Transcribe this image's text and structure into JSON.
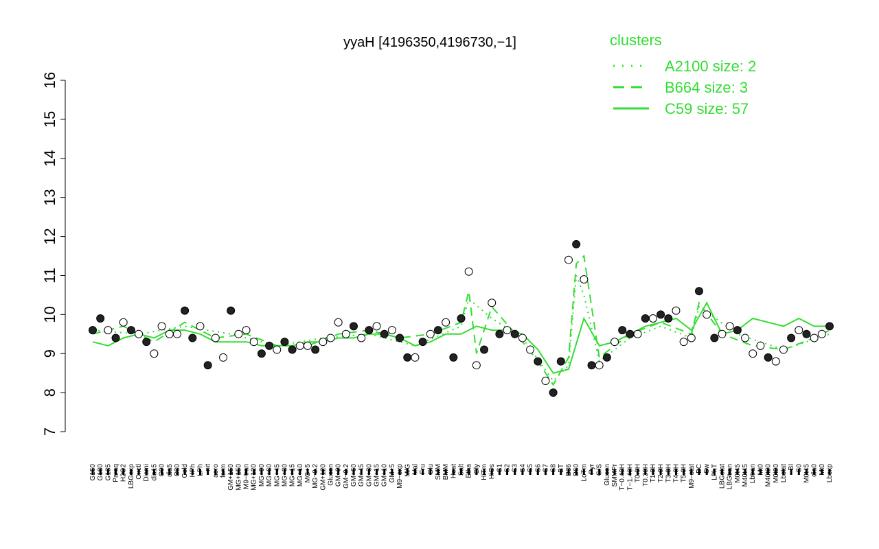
{
  "chart_data": {
    "type": "line",
    "title": "yyaH [4196350,4196730,−1]",
    "xlabel": "",
    "ylabel": "",
    "ylim": [
      7,
      16
    ],
    "yticks": [
      7,
      8,
      9,
      10,
      11,
      12,
      13,
      14,
      15,
      16
    ],
    "grid": false,
    "legend": {
      "title": "clusters",
      "placement": "top-right",
      "color": "#33dd33",
      "entries": [
        {
          "label": "A2100 size: 2",
          "style": "dotted"
        },
        {
          "label": "B664 size: 3",
          "style": "dashed"
        },
        {
          "label": "C59 size: 57",
          "style": "solid"
        }
      ]
    },
    "x_tick_labels": [
      "G150",
      "G180",
      "G135",
      "Paraq",
      "H2O2",
      "LBGexp",
      "Oxctl",
      "Diami",
      "dia15",
      "C90",
      "dia5",
      "C30",
      "Cold",
      "HPh",
      "LPh",
      "nit",
      "aero",
      "ferm",
      "GM+150",
      "MG+150",
      "M9−tran",
      "MG+120",
      "MG+90",
      "MG+60",
      "MG+45",
      "MG+30",
      "MG+15",
      "MG+10",
      "MG+5",
      "MG−0.2",
      "GM+120",
      "Glucon",
      "GM+90",
      "GM−0.2",
      "GM+60",
      "GM+45",
      "GM+30",
      "GM+15",
      "GM+10",
      "GM+5",
      "M9−exp",
      "M/G",
      "Mal",
      "Fru",
      "Glu",
      "SMM",
      "BMM",
      "Heat",
      "Salt",
      "Etha",
      "Gly",
      "HiTm",
      "HiOs",
      "S1",
      "S2",
      "S3",
      "S4",
      "S5",
      "S6",
      "S7",
      "S8",
      "BT",
      "B36",
      "B60",
      "LoTm",
      "Pyr",
      "G/S",
      "Glucon",
      "SMMPr",
      "T−0.40H",
      "T−1.40H",
      "T0.0H",
      "T0.30H",
      "T1.0H",
      "T2.0H",
      "T3.0H",
      "T4.0H",
      "T5.0H",
      "M9−stat",
      "BC",
      "Sw",
      "LPhT",
      "LBGstat",
      "LBGtran",
      "M0t45",
      "M40t45",
      "Lbtran",
      "Mt0",
      "M40t90",
      "M0t90",
      "Lbstat",
      "BI",
      "S0",
      "M0t45",
      "dia0",
      "Mt0",
      "Lbexp"
    ],
    "series": [
      {
        "name": "samples",
        "style": "points",
        "x": [
          0,
          1,
          2,
          3,
          4,
          5,
          6,
          7,
          8,
          9,
          10,
          11,
          12,
          13,
          14,
          15,
          16,
          17,
          18,
          19,
          20,
          21,
          22,
          23,
          24,
          25,
          26,
          27,
          28,
          29,
          30,
          31,
          32,
          33,
          34,
          35,
          36,
          37,
          38,
          39,
          40,
          41,
          42,
          43,
          44,
          45,
          46,
          47,
          48,
          49,
          50,
          51,
          52,
          53,
          54,
          55,
          56,
          57,
          58,
          59,
          60,
          61,
          62,
          63,
          64,
          65,
          66,
          67,
          68,
          69,
          70,
          71,
          72,
          73,
          74,
          75,
          76,
          77,
          78,
          79,
          80,
          81,
          82,
          83,
          84,
          85,
          86,
          87,
          88,
          89,
          90,
          91,
          92,
          93,
          94,
          95,
          96
        ],
        "y": [
          9.6,
          9.9,
          9.6,
          9.4,
          9.8,
          9.6,
          9.5,
          9.3,
          9.0,
          9.7,
          9.5,
          9.5,
          10.1,
          9.4,
          9.7,
          8.7,
          9.4,
          8.9,
          10.1,
          9.5,
          9.6,
          9.3,
          9.0,
          9.2,
          9.1,
          9.3,
          9.1,
          9.2,
          9.2,
          9.1,
          9.3,
          9.4,
          9.8,
          9.5,
          9.7,
          9.4,
          9.6,
          9.7,
          9.5,
          9.6,
          9.4,
          8.9,
          8.9,
          9.3,
          9.5,
          9.6,
          9.8,
          8.9,
          9.9,
          11.1,
          8.7,
          9.1,
          10.3,
          9.5,
          9.6,
          9.5,
          9.4,
          9.1,
          8.8,
          8.3,
          8.0,
          8.8,
          11.4,
          11.8,
          10.9,
          8.7,
          8.7,
          8.9,
          9.3,
          9.6,
          9.5,
          9.5,
          9.9,
          9.9,
          10.0,
          9.9,
          10.1,
          9.3,
          9.4,
          10.6,
          10.0,
          9.4,
          9.5,
          9.7,
          9.6,
          9.4,
          9.0,
          9.2,
          8.9,
          8.8,
          9.1,
          9.4,
          9.6,
          9.5,
          9.4,
          9.5,
          9.7
        ],
        "filled": [
          true,
          true,
          false,
          true,
          false,
          true,
          false,
          true,
          false,
          false,
          false,
          false,
          true,
          true,
          false,
          true,
          false,
          false,
          true,
          false,
          false,
          false,
          true,
          true,
          false,
          true,
          true,
          false,
          false,
          true,
          false,
          false,
          false,
          false,
          true,
          false,
          true,
          false,
          true,
          false,
          true,
          true,
          false,
          true,
          false,
          true,
          false,
          true,
          true,
          false,
          false,
          true,
          false,
          true,
          false,
          true,
          false,
          false,
          true,
          false,
          true,
          true,
          false,
          true,
          false,
          true,
          false,
          true,
          false,
          true,
          true,
          false,
          true,
          false,
          true,
          true,
          false,
          false,
          false,
          true,
          false,
          true,
          false,
          false,
          true,
          false,
          false,
          false,
          true,
          false,
          false,
          true,
          false,
          true,
          false,
          false,
          true
        ]
      },
      {
        "name": "C59 size: 57",
        "style": "solid",
        "x": [
          0,
          2,
          4,
          6,
          8,
          10,
          12,
          14,
          16,
          18,
          20,
          22,
          24,
          26,
          28,
          30,
          32,
          34,
          36,
          38,
          40,
          42,
          44,
          46,
          48,
          50,
          52,
          54,
          56,
          58,
          60,
          62,
          64,
          66,
          68,
          70,
          72,
          74,
          76,
          78,
          80,
          82,
          84,
          86,
          88,
          90,
          92,
          94,
          96
        ],
        "y": [
          9.3,
          9.2,
          9.4,
          9.5,
          9.4,
          9.6,
          9.6,
          9.5,
          9.3,
          9.3,
          9.3,
          9.2,
          9.2,
          9.2,
          9.3,
          9.3,
          9.4,
          9.4,
          9.5,
          9.5,
          9.4,
          9.2,
          9.3,
          9.5,
          9.5,
          9.7,
          9.6,
          9.6,
          9.5,
          9.1,
          8.5,
          8.6,
          9.9,
          9.2,
          9.3,
          9.5,
          9.7,
          9.8,
          9.9,
          9.6,
          10.3,
          9.5,
          9.6,
          9.9,
          9.8,
          9.7,
          9.9,
          9.7,
          9.7
        ]
      },
      {
        "name": "B664 size: 3",
        "style": "dashed",
        "x": [
          0,
          4,
          8,
          12,
          16,
          20,
          24,
          28,
          32,
          36,
          40,
          44,
          48,
          49,
          50,
          52,
          56,
          58,
          60,
          62,
          63,
          64,
          66,
          70,
          74,
          78,
          79,
          82,
          86,
          90,
          94,
          96
        ],
        "y": [
          9.5,
          9.7,
          9.3,
          9.8,
          9.4,
          9.5,
          9.2,
          9.2,
          9.5,
          9.6,
          9.4,
          9.5,
          9.8,
          10.6,
          9.0,
          10.2,
          9.3,
          8.8,
          8.2,
          8.9,
          11.3,
          11.5,
          8.9,
          9.5,
          9.8,
          9.5,
          10.3,
          9.5,
          9.2,
          9.1,
          9.4,
          9.6
        ]
      },
      {
        "name": "A2100 size: 2",
        "style": "dotted",
        "x": [
          0,
          6,
          12,
          18,
          24,
          30,
          36,
          42,
          48,
          49,
          52,
          56,
          60,
          62,
          63,
          64,
          66,
          70,
          74,
          78,
          79,
          84,
          90,
          96
        ],
        "y": [
          9.6,
          9.5,
          9.7,
          9.5,
          9.2,
          9.4,
          9.5,
          9.2,
          9.7,
          10.4,
          9.9,
          9.4,
          8.3,
          8.7,
          11.0,
          10.5,
          8.8,
          9.4,
          9.7,
          9.4,
          10.2,
          9.5,
          9.1,
          9.5
        ]
      }
    ]
  }
}
